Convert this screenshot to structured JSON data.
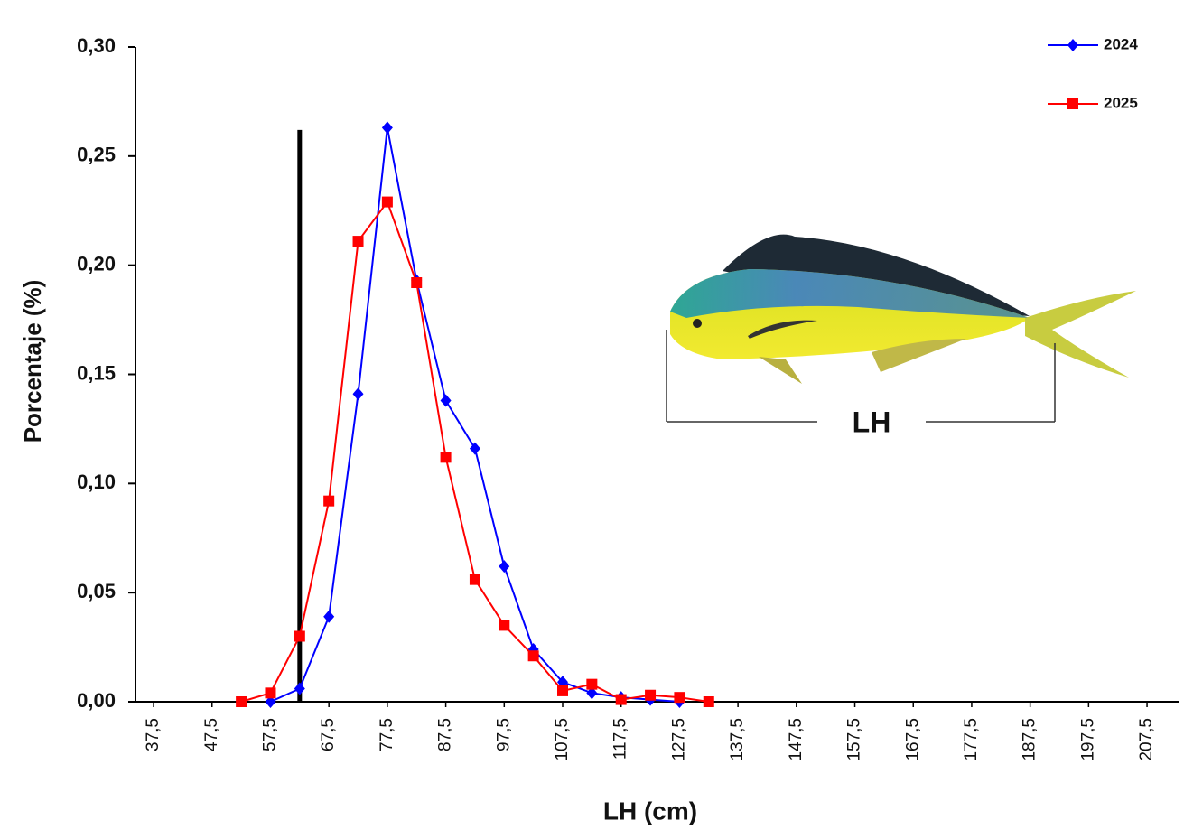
{
  "chart_data": {
    "type": "line",
    "ylabel": "Porcentaje (%)",
    "xlabel": "LH (cm)",
    "annotation": "LH",
    "x": [
      52.5,
      57.5,
      62.5,
      67.5,
      72.5,
      77.5,
      82.5,
      87.5,
      92.5,
      97.5,
      102.5,
      107.5,
      112.5,
      117.5,
      122.5,
      127.5,
      132.5
    ],
    "series": [
      {
        "name": "2024",
        "color": "#0000ff",
        "marker": "diamond",
        "values": [
          null,
          0.0,
          0.006,
          0.039,
          0.141,
          0.263,
          0.193,
          0.138,
          0.116,
          0.062,
          0.024,
          0.009,
          0.004,
          0.002,
          0.001,
          0.0,
          null
        ]
      },
      {
        "name": "2025",
        "color": "#ff0000",
        "marker": "square",
        "values": [
          0.0,
          0.004,
          0.03,
          0.092,
          0.211,
          0.229,
          0.192,
          0.112,
          0.056,
          0.035,
          0.021,
          0.005,
          0.008,
          0.001,
          0.003,
          0.002,
          0.0
        ]
      }
    ],
    "reference_line": {
      "x": 62.5,
      "y_end": 0.262
    },
    "xlim": [
      34.4,
      212.9
    ],
    "xticks": [
      {
        "value": 37.5,
        "label": "37,5"
      },
      {
        "value": 47.5,
        "label": "47,5"
      },
      {
        "value": 57.5,
        "label": "57,5"
      },
      {
        "value": 67.5,
        "label": "67,5"
      },
      {
        "value": 77.5,
        "label": "77,5"
      },
      {
        "value": 87.5,
        "label": "87,5"
      },
      {
        "value": 97.5,
        "label": "97,5"
      },
      {
        "value": 107.5,
        "label": "107,5"
      },
      {
        "value": 117.5,
        "label": "117,5"
      },
      {
        "value": 127.5,
        "label": "127,5"
      },
      {
        "value": 137.5,
        "label": "137,5"
      },
      {
        "value": 147.5,
        "label": "147,5"
      },
      {
        "value": 157.5,
        "label": "157,5"
      },
      {
        "value": 167.5,
        "label": "167,5"
      },
      {
        "value": 177.5,
        "label": "177,5"
      },
      {
        "value": 187.5,
        "label": "187,5"
      },
      {
        "value": 197.5,
        "label": "197,5"
      },
      {
        "value": 207.5,
        "label": "207,5"
      }
    ],
    "ylim": [
      0,
      0.3
    ],
    "yticks": [
      {
        "value": 0,
        "label": "0,00"
      },
      {
        "value": 0.05,
        "label": "0,05"
      },
      {
        "value": 0.1,
        "label": "0,10"
      },
      {
        "value": 0.15,
        "label": "0,15"
      },
      {
        "value": 0.2,
        "label": "0,20"
      },
      {
        "value": 0.25,
        "label": "0,25"
      },
      {
        "value": 0.3,
        "label": "0,30"
      }
    ],
    "legend": "top-right",
    "grid": false
  }
}
